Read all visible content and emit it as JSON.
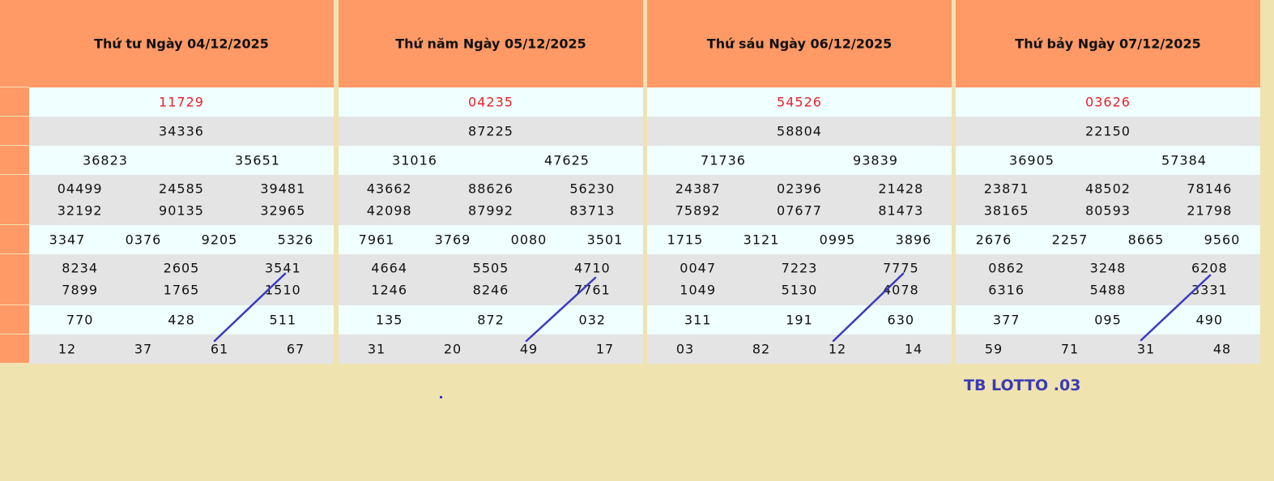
{
  "days": [
    {
      "title": "Thứ tư Ngày 04/12/2025",
      "rows": [
        [
          "11729"
        ],
        [
          "34336"
        ],
        [
          "36823",
          "35651"
        ],
        [
          "04499",
          "24585",
          "39481",
          "32192",
          "90135",
          "32965"
        ],
        [
          "3347",
          "0376",
          "9205",
          "5326"
        ],
        [
          "8234",
          "2605",
          "3541",
          "7899",
          "1765",
          "1510"
        ],
        [
          "770",
          "428",
          "511"
        ],
        [
          "12",
          "37",
          "61",
          "67"
        ]
      ]
    },
    {
      "title": "Thứ năm Ngày 05/12/2025",
      "rows": [
        [
          "04235"
        ],
        [
          "87225"
        ],
        [
          "31016",
          "47625"
        ],
        [
          "43662",
          "88626",
          "56230",
          "42098",
          "87992",
          "83713"
        ],
        [
          "7961",
          "3769",
          "0080",
          "3501"
        ],
        [
          "4664",
          "5505",
          "4710",
          "1246",
          "8246",
          "7761"
        ],
        [
          "135",
          "872",
          "032"
        ],
        [
          "31",
          "20",
          "49",
          "17"
        ]
      ]
    },
    {
      "title": "Thứ sáu Ngày 06/12/2025",
      "rows": [
        [
          "54526"
        ],
        [
          "58804"
        ],
        [
          "71736",
          "93839"
        ],
        [
          "24387",
          "02396",
          "21428",
          "75892",
          "07677",
          "81473"
        ],
        [
          "1715",
          "3121",
          "0995",
          "3896"
        ],
        [
          "0047",
          "7223",
          "7775",
          "1049",
          "5130",
          "4078"
        ],
        [
          "311",
          "191",
          "630"
        ],
        [
          "03",
          "82",
          "12",
          "14"
        ]
      ]
    },
    {
      "title": "Thứ bảy Ngày 07/12/2025",
      "rows": [
        [
          "03626"
        ],
        [
          "22150"
        ],
        [
          "36905",
          "57384"
        ],
        [
          "23871",
          "48502",
          "78146",
          "38165",
          "80593",
          "21798"
        ],
        [
          "2676",
          "2257",
          "8665",
          "9560"
        ],
        [
          "0862",
          "3248",
          "6208",
          "6316",
          "5488",
          "3331"
        ],
        [
          "377",
          "095",
          "490"
        ],
        [
          "59",
          "71",
          "31",
          "48"
        ]
      ]
    }
  ],
  "footer": {
    "label": "TB LOTTO .03"
  }
}
